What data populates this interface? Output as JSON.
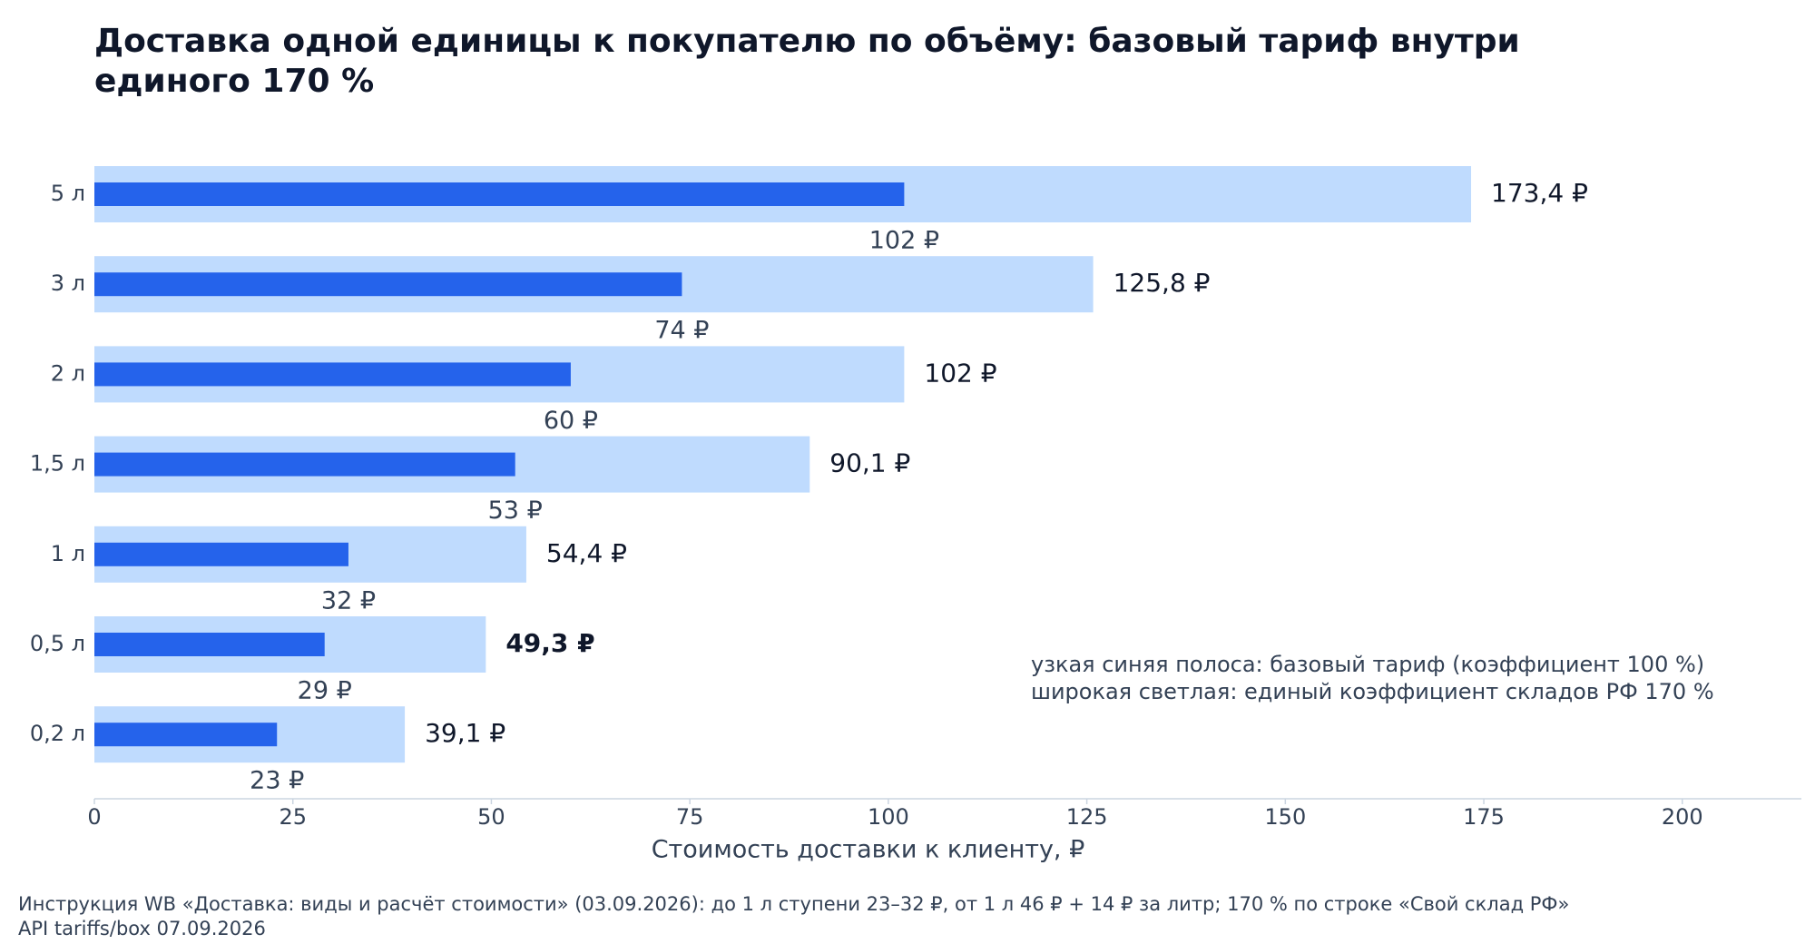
{
  "chart_data": {
    "type": "bar",
    "title": "Доставка одной единицы к покупателю по объёму: базовый тариф внутри единого 170 %",
    "categories": [
      "5 л",
      "3 л",
      "2 л",
      "1,5 л",
      "1 л",
      "0,5 л",
      "0,2 л"
    ],
    "series": [
      {
        "values": [
          173.4,
          125.8,
          102,
          90.1,
          54.4,
          49.3,
          39.1
        ],
        "labels": [
          "173,4 ₽",
          "125,8 ₽",
          "102 ₽",
          "90,1 ₽",
          "54,4 ₽",
          "49,3 ₽",
          "39,1 ₽"
        ],
        "color": "#bfdbfe"
      },
      {
        "values": [
          102,
          74,
          60,
          53,
          32,
          29,
          23
        ],
        "labels": [
          "102 ₽",
          "74 ₽",
          "60 ₽",
          "53 ₽",
          "32 ₽",
          "29 ₽",
          "23 ₽"
        ],
        "color": "#2563eb"
      }
    ],
    "highlighted_category": "0,5 л",
    "xlabel": "Стоимость доставки к клиенту, ₽",
    "ylabel": "",
    "xlim": [
      0,
      215
    ],
    "xticks": [
      0,
      25,
      50,
      75,
      100,
      125,
      150,
      175,
      200
    ],
    "grid": false,
    "annotation": [
      "узкая синяя полоса: базовый тариф (коэффициент 100 %)",
      "широкая светлая: единый коэффициент складов РФ 170 %"
    ]
  },
  "footnotes": [
    "Инструкция WB «Доставка: виды и расчёт стоимости» (03.09.2026): до 1 л ступени 23–32 ₽, от 1 л 46 ₽ + 14 ₽ за литр; 170 % по строке «Свой склад РФ»",
    "API tariffs/box 07.09.2026"
  ],
  "colors": {
    "title": "#0f172a",
    "axis_text": "#334155",
    "value_text": "#0f172a",
    "axis_line": "#cbd5e1"
  }
}
